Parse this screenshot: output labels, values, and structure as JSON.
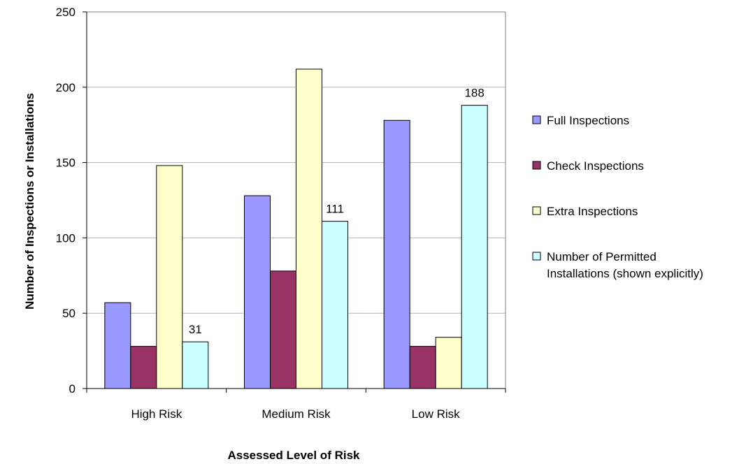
{
  "chart_data": {
    "type": "bar",
    "categories": [
      "High Risk",
      "Medium Risk",
      "Low Risk"
    ],
    "series": [
      {
        "name": "Full Inspections",
        "values": [
          57,
          128,
          178
        ],
        "color": "#9999ff"
      },
      {
        "name": "Check Inspections",
        "values": [
          28,
          78,
          28
        ],
        "color": "#993366"
      },
      {
        "name": "Extra Inspections",
        "values": [
          148,
          212,
          34
        ],
        "color": "#ffffcc"
      },
      {
        "name": "Number of Permitted Installations (shown explicitly)",
        "legend_lines": [
          "Number of Permitted",
          "Installations (shown explicitly)"
        ],
        "values": [
          31,
          111,
          188
        ],
        "color": "#ccffff",
        "show_labels": true
      }
    ],
    "xlabel": "Assessed Level of Risk",
    "ylabel": "Number of Inspections or Installations",
    "ylim": [
      0,
      250
    ],
    "yticks": [
      0,
      50,
      100,
      150,
      200,
      250
    ],
    "grid": true,
    "legend": "right"
  }
}
